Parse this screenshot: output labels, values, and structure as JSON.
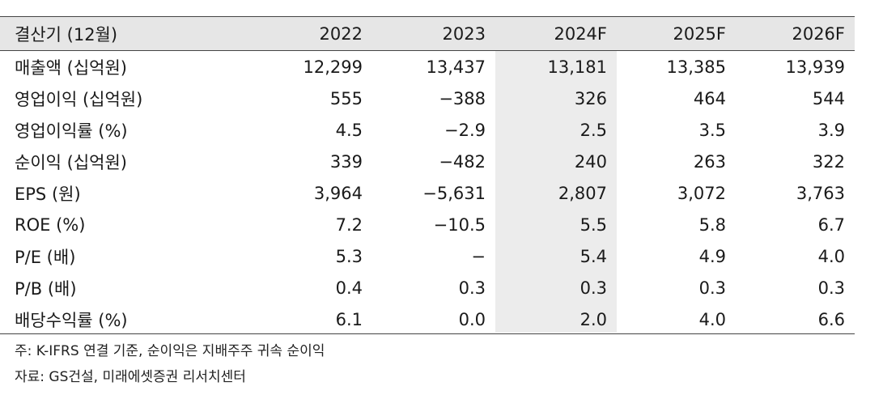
{
  "table": {
    "header": [
      "결산기 (12월)",
      "2022",
      "2023",
      "2024F",
      "2025F",
      "2026F"
    ],
    "rows": [
      [
        "매출액 (십억원)",
        "12,299",
        "13,437",
        "13,181",
        "13,385",
        "13,939"
      ],
      [
        "영업이익 (십억원)",
        "555",
        "−388",
        "326",
        "464",
        "544"
      ],
      [
        "영업이익률 (%)",
        "4.5",
        "−2.9",
        "2.5",
        "3.5",
        "3.9"
      ],
      [
        "순이익 (십억원)",
        "339",
        "−482",
        "240",
        "263",
        "322"
      ],
      [
        "EPS (원)",
        "3,964",
        "−5,631",
        "2,807",
        "3,072",
        "3,763"
      ],
      [
        "ROE (%)",
        "7.2",
        "−10.5",
        "5.5",
        "5.8",
        "6.7"
      ],
      [
        "P/E (배)",
        "5.3",
        "−",
        "5.4",
        "4.9",
        "4.0"
      ],
      [
        "P/B (배)",
        "0.4",
        "0.3",
        "0.3",
        "0.3",
        "0.3"
      ],
      [
        "배당수익률 (%)",
        "6.1",
        "0.0",
        "2.0",
        "4.0",
        "6.6"
      ]
    ]
  },
  "notes": {
    "note": "주: K-IFRS 연결 기준, 순이익은 지배주주 귀속 순이익",
    "source": "자료: GS건설, 미래에셋증권 리서치센터"
  },
  "colors": {
    "header_bg": "#e6e6e6",
    "highlight_col": "#ececec",
    "rule": "#444444"
  }
}
